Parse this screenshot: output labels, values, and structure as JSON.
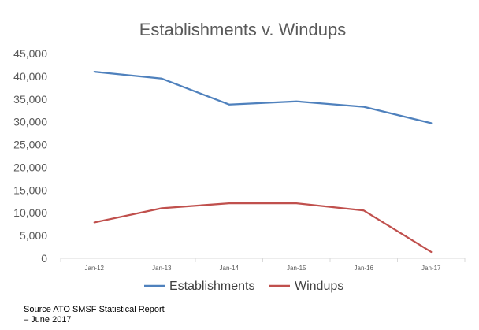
{
  "chart_data": {
    "type": "line",
    "title": "Establishments v. Windups",
    "categories": [
      "Jan-12",
      "Jan-13",
      "Jan-14",
      "Jan-15",
      "Jan-16",
      "Jan-17"
    ],
    "series": [
      {
        "name": "Establishments",
        "color": "#4f81bd",
        "values": [
          41000,
          39500,
          33800,
          34500,
          33300,
          29700
        ]
      },
      {
        "name": "Windups",
        "color": "#c0504d",
        "values": [
          7900,
          11000,
          12100,
          12100,
          10500,
          1400
        ]
      }
    ],
    "ylim": [
      0,
      45000
    ],
    "yticks": [
      0,
      5000,
      10000,
      15000,
      20000,
      25000,
      30000,
      35000,
      40000,
      45000
    ],
    "ytick_labels": [
      "0",
      "5,000",
      "10,000",
      "15,000",
      "20,000",
      "25,000",
      "30,000",
      "35,000",
      "40,000",
      "45,000"
    ],
    "grid": false,
    "legend_position": "bottom"
  },
  "source_note": "Source ATO SMSF Statistical Report – June 2017"
}
